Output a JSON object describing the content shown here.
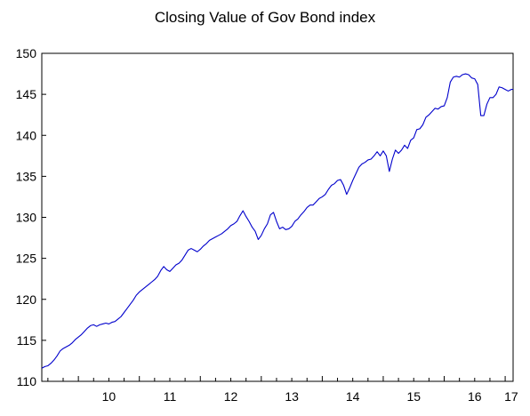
{
  "chart_data": {
    "type": "line",
    "title": "Closing Value of Gov Bond index",
    "xlabel": "",
    "ylabel": "",
    "ylim": [
      110,
      150
    ],
    "y_ticks": [
      "110",
      "115",
      "120",
      "125",
      "130",
      "135",
      "140",
      "145",
      "150"
    ],
    "x_ticks": [
      "10",
      "11",
      "12",
      "13",
      "14",
      "15",
      "16",
      "17"
    ],
    "xlim": [
      2009.4,
      2017.13
    ],
    "grid": false,
    "legend": "none",
    "line_color": "#0000cc",
    "series": [
      {
        "x": [
          2009.4,
          2009.45,
          2009.5,
          2009.55,
          2009.6,
          2009.65,
          2009.7,
          2009.75,
          2009.8,
          2009.85,
          2009.9,
          2009.95,
          2010.0,
          2010.05,
          2010.1,
          2010.15,
          2010.2,
          2010.25,
          2010.3,
          2010.35,
          2010.4,
          2010.45,
          2010.5,
          2010.55,
          2010.6,
          2010.65,
          2010.7,
          2010.75,
          2010.8,
          2010.85,
          2010.9,
          2010.95,
          2011.0,
          2011.05,
          2011.1,
          2011.15,
          2011.2,
          2011.25,
          2011.3,
          2011.35,
          2011.4,
          2011.45,
          2011.5,
          2011.55,
          2011.6,
          2011.65,
          2011.7,
          2011.75,
          2011.8,
          2011.85,
          2011.9,
          2011.95,
          2012.0,
          2012.05,
          2012.1,
          2012.15,
          2012.2,
          2012.25,
          2012.3,
          2012.35,
          2012.4,
          2012.45,
          2012.5,
          2012.55,
          2012.6,
          2012.65,
          2012.7,
          2012.75,
          2012.8,
          2012.85,
          2012.9,
          2012.95,
          2013.0,
          2013.05,
          2013.1,
          2013.15,
          2013.2,
          2013.25,
          2013.3,
          2013.35,
          2013.4,
          2013.45,
          2013.5,
          2013.55,
          2013.6,
          2013.65,
          2013.7,
          2013.75,
          2013.8,
          2013.85,
          2013.9,
          2013.95,
          2014.0,
          2014.05,
          2014.1,
          2014.15,
          2014.2,
          2014.25,
          2014.3,
          2014.35,
          2014.4,
          2014.45,
          2014.5,
          2014.55,
          2014.6,
          2014.65,
          2014.7,
          2014.75,
          2014.8,
          2014.85,
          2014.9,
          2014.95,
          2015.0,
          2015.05,
          2015.1,
          2015.15,
          2015.2,
          2015.25,
          2015.3,
          2015.35,
          2015.4,
          2015.45,
          2015.5,
          2015.55,
          2015.6,
          2015.65,
          2015.7,
          2015.75,
          2015.8,
          2015.85,
          2015.9,
          2015.95,
          2016.0,
          2016.05,
          2016.1,
          2016.15,
          2016.2,
          2016.25,
          2016.3,
          2016.35,
          2016.4,
          2016.45,
          2016.5,
          2016.55,
          2016.6,
          2016.65,
          2016.7,
          2016.75,
          2016.8,
          2016.85,
          2016.9,
          2016.95,
          2017.0,
          2017.05,
          2017.1,
          2017.13
        ],
        "y": [
          111.6,
          111.8,
          111.9,
          112.2,
          112.6,
          113.1,
          113.7,
          114.0,
          114.2,
          114.4,
          114.7,
          115.1,
          115.4,
          115.7,
          116.1,
          116.5,
          116.8,
          116.9,
          116.7,
          116.9,
          117.0,
          117.1,
          117.0,
          117.2,
          117.3,
          117.6,
          117.9,
          118.4,
          118.9,
          119.4,
          119.9,
          120.5,
          120.9,
          121.2,
          121.5,
          121.8,
          122.1,
          122.4,
          122.8,
          123.5,
          124.0,
          123.6,
          123.4,
          123.8,
          124.2,
          124.4,
          124.8,
          125.4,
          126.0,
          126.2,
          126.0,
          125.8,
          126.1,
          126.5,
          126.8,
          127.2,
          127.4,
          127.6,
          127.8,
          128.0,
          128.3,
          128.6,
          129.0,
          129.2,
          129.5,
          130.2,
          130.8,
          130.1,
          129.5,
          128.8,
          128.3,
          127.3,
          127.8,
          128.6,
          129.2,
          130.3,
          130.6,
          129.5,
          128.6,
          128.8,
          128.5,
          128.6,
          128.9,
          129.5,
          129.8,
          130.3,
          130.7,
          131.2,
          131.5,
          131.5,
          131.9,
          132.3,
          132.5,
          132.8,
          133.4,
          133.9,
          134.1,
          134.5,
          134.6,
          133.9,
          132.8,
          133.6,
          134.5,
          135.3,
          136.1,
          136.5,
          136.7,
          137.0,
          137.1,
          137.5,
          138.0,
          137.5,
          138.1,
          137.5,
          135.6,
          137.1,
          138.2,
          137.8,
          138.2,
          138.8,
          138.4,
          139.4,
          139.7,
          140.7,
          140.8,
          141.3,
          142.2,
          142.5,
          142.9,
          143.3,
          143.2,
          143.5,
          143.6,
          144.6,
          146.5,
          147.1,
          147.2,
          147.1,
          147.4,
          147.5,
          147.4,
          147.0,
          146.9,
          146.2,
          142.4,
          142.4,
          143.8,
          144.6,
          144.6,
          145.0,
          145.9,
          145.8,
          145.6,
          145.4,
          145.6,
          145.6
        ]
      }
    ]
  }
}
